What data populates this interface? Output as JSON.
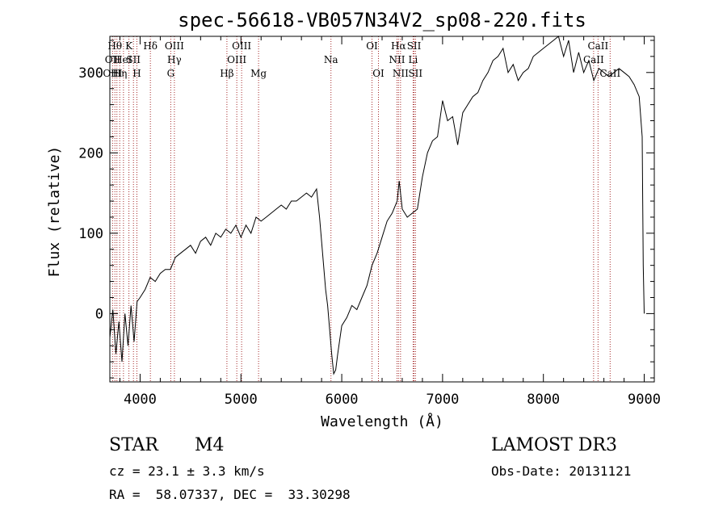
{
  "chart_data": {
    "type": "line",
    "title": "spec-56618-VB057N34V2_sp08-220.fits",
    "xlabel": "Wavelength (Å)",
    "ylabel": "Flux (relative)",
    "xlim": [
      3700,
      9100
    ],
    "ylim": [
      -85,
      345
    ],
    "xticks": [
      4000,
      5000,
      6000,
      7000,
      8000,
      9000
    ],
    "yticks": [
      0,
      100,
      200,
      300
    ],
    "grid": false,
    "line_color": "#000000",
    "marker_color": "#a52a2a",
    "series": [
      {
        "x": [
          3700,
          3730,
          3760,
          3790,
          3820,
          3850,
          3880,
          3910,
          3940,
          3970,
          4000,
          4050,
          4100,
          4150,
          4200,
          4250,
          4300,
          4350,
          4400,
          4450,
          4500,
          4550,
          4600,
          4650,
          4700,
          4750,
          4800,
          4850,
          4900,
          4950,
          5000,
          5050,
          5100,
          5150,
          5200,
          5250,
          5300,
          5350,
          5400,
          5450,
          5500,
          5550,
          5600,
          5650,
          5700,
          5750,
          5780,
          5800,
          5820,
          5840,
          5860,
          5880,
          5900,
          5920,
          5940,
          5960,
          6000,
          6050,
          6100,
          6150,
          6200,
          6250,
          6300,
          6350,
          6400,
          6450,
          6500,
          6550,
          6570,
          6600,
          6650,
          6700,
          6750,
          6800,
          6850,
          6900,
          6950,
          7000,
          7050,
          7100,
          7150,
          7200,
          7250,
          7300,
          7350,
          7400,
          7450,
          7500,
          7550,
          7600,
          7650,
          7700,
          7750,
          7800,
          7850,
          7900,
          7950,
          8000,
          8050,
          8100,
          8150,
          8200,
          8250,
          8300,
          8350,
          8400,
          8450,
          8500,
          8550,
          8600,
          8650,
          8700,
          8750,
          8800,
          8850,
          8900,
          8950,
          8980,
          8990,
          9000
        ],
        "y": [
          -30,
          5,
          -50,
          -10,
          -60,
          0,
          -40,
          10,
          -35,
          15,
          20,
          30,
          45,
          40,
          50,
          55,
          55,
          70,
          75,
          80,
          85,
          75,
          90,
          95,
          85,
          100,
          95,
          105,
          100,
          110,
          95,
          110,
          100,
          120,
          115,
          120,
          125,
          130,
          135,
          130,
          140,
          140,
          145,
          150,
          145,
          155,
          120,
          90,
          60,
          30,
          10,
          -20,
          -50,
          -75,
          -70,
          -50,
          -15,
          -5,
          10,
          5,
          20,
          35,
          60,
          75,
          95,
          115,
          125,
          140,
          165,
          130,
          120,
          125,
          130,
          170,
          200,
          215,
          220,
          265,
          240,
          245,
          210,
          250,
          260,
          270,
          275,
          290,
          300,
          315,
          320,
          330,
          300,
          310,
          290,
          300,
          305,
          320,
          325,
          330,
          335,
          340,
          345,
          320,
          340,
          300,
          325,
          300,
          315,
          290,
          305,
          300,
          295,
          300,
          305,
          300,
          295,
          285,
          270,
          220,
          60,
          0
        ]
      }
    ],
    "lines_top": [
      {
        "w": 3750,
        "name": "Hθ"
      },
      {
        "w": 3889,
        "name": "K"
      },
      {
        "w": 4102,
        "name": "Hδ"
      },
      {
        "w": 4340,
        "name": "OIII"
      },
      {
        "w": 5007,
        "name": "OIII"
      },
      {
        "w": 6300,
        "name": "OI"
      },
      {
        "w": 6563,
        "name": "Hα"
      },
      {
        "w": 6717,
        "name": "SII"
      },
      {
        "w": 8542,
        "name": "CaII"
      }
    ],
    "lines_mid": [
      {
        "w": 3727,
        "name": "OII"
      },
      {
        "w": 3830,
        "name": "HeI"
      },
      {
        "w": 3934,
        "name": "SII"
      },
      {
        "w": 4340,
        "name": "Hγ"
      },
      {
        "w": 4959,
        "name": "OIII"
      },
      {
        "w": 5893,
        "name": "Na"
      },
      {
        "w": 6548,
        "name": "NII"
      },
      {
        "w": 6708,
        "name": "Li"
      },
      {
        "w": 8498,
        "name": "CaII"
      }
    ],
    "lines_low": [
      {
        "w": 3727,
        "name": "OIII"
      },
      {
        "w": 3800,
        "name": "Hη"
      },
      {
        "w": 3968,
        "name": "H"
      },
      {
        "w": 4304,
        "name": "G"
      },
      {
        "w": 4861,
        "name": "Hβ"
      },
      {
        "w": 5175,
        "name": "Mg"
      },
      {
        "w": 6364,
        "name": "OI"
      },
      {
        "w": 6583,
        "name": "NII"
      },
      {
        "w": 6731,
        "name": "SII"
      },
      {
        "w": 8662,
        "name": "CaII"
      }
    ],
    "marker_positions": [
      3727,
      3750,
      3770,
      3798,
      3835,
      3889,
      3934,
      3968,
      4102,
      4304,
      4340,
      4861,
      4959,
      5007,
      5175,
      5893,
      6300,
      6364,
      6548,
      6563,
      6583,
      6708,
      6717,
      6731,
      8498,
      8542,
      8662
    ]
  },
  "info": {
    "class_label": "STAR",
    "subclass": "M4",
    "survey": "LAMOST DR3",
    "cz": "cz = 23.1 ± 3.3 km/s",
    "obs_date": "Obs-Date: 20131121",
    "coords": "RA =  58.07337, DEC =  33.30298"
  }
}
